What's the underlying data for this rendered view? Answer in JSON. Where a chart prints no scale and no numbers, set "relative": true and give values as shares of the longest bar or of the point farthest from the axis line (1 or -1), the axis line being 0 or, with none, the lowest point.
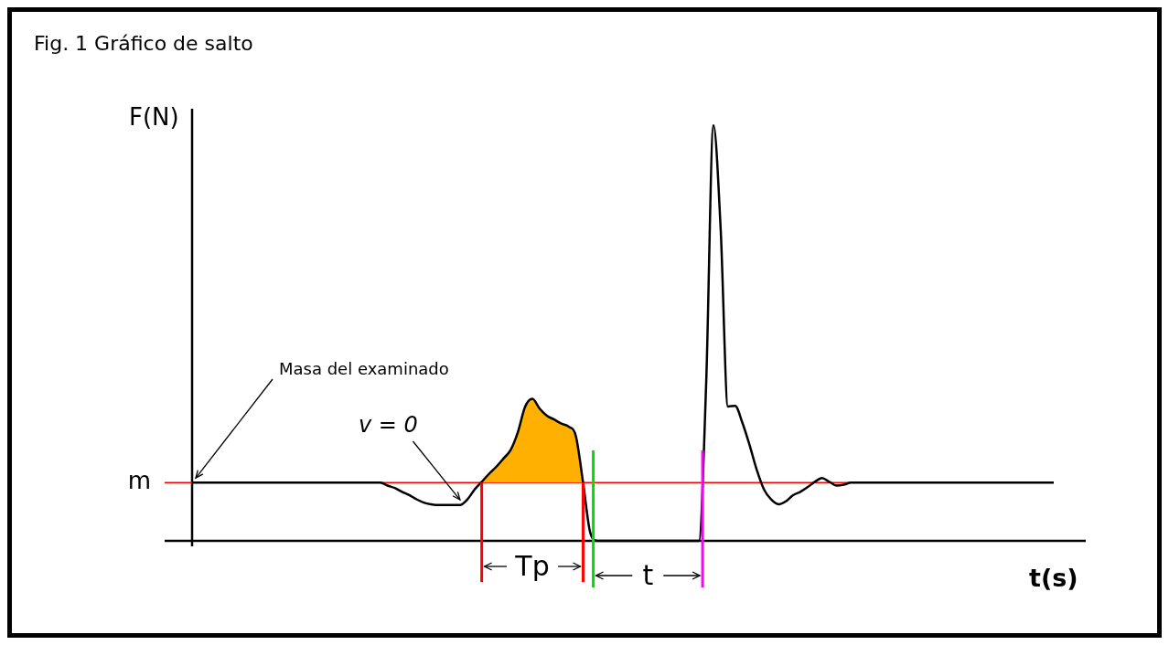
{
  "chart_data": {
    "type": "line",
    "title": "Fig. 1 Gráfico de salto",
    "xlabel": "t(s)",
    "ylabel": "F(N)",
    "relative": true,
    "categories": [
      null,
      null,
      null,
      null,
      null,
      null,
      null,
      null,
      null,
      null,
      null,
      null,
      null,
      null,
      null,
      null,
      null,
      null,
      null,
      null,
      null,
      null,
      null,
      null,
      null,
      null,
      null,
      null,
      null,
      null,
      null,
      null,
      null,
      null,
      null,
      null,
      null,
      null,
      null,
      null,
      null,
      null,
      null,
      null,
      null,
      null,
      null,
      null,
      null,
      null,
      null,
      null,
      null,
      null,
      null,
      null,
      null,
      null,
      null,
      null,
      null,
      null,
      null,
      null,
      null,
      null,
      null,
      null,
      null,
      null,
      null,
      null,
      null,
      null,
      null,
      null,
      null,
      null,
      null,
      null,
      null,
      null,
      null,
      null,
      null,
      null,
      null,
      null,
      null,
      null,
      null,
      null,
      null,
      null,
      null,
      null,
      null,
      null,
      null,
      null,
      null,
      null,
      null,
      null,
      null,
      null,
      null,
      null,
      null,
      null,
      null,
      null,
      null,
      null,
      null,
      null,
      null,
      null,
      null,
      null
    ],
    "series": [
      {
        "type": "line",
        "color": "#000000",
        "values": [
          0.14,
          0.14,
          0.14,
          0.14,
          0.14,
          0.14,
          0.14,
          0.14,
          0.14,
          0.14,
          0.14,
          0.14,
          0.14,
          0.14,
          0.14,
          0.14,
          0.14,
          0.14,
          0.14,
          0.14,
          0.14,
          0.14,
          0.14,
          0.14,
          0.14,
          0.14,
          0.14,
          0.133,
          0.127,
          0.118,
          0.11,
          0.1,
          0.092,
          0.088,
          0.086,
          0.086,
          0.086,
          0.086,
          0.099,
          0.123,
          0.142,
          0.161,
          0.178,
          0.198,
          0.219,
          0.262,
          0.323,
          0.342,
          0.318,
          0.301,
          0.292,
          0.282,
          0.275,
          0.252,
          0.14,
          0.019,
          0,
          0,
          0,
          0,
          0,
          0,
          0,
          0,
          0,
          0,
          0,
          0,
          0,
          0,
          0,
          0.38,
          1,
          0.75,
          0.323,
          0.325,
          0.284,
          0.23,
          0.17,
          0.123,
          0.099,
          0.088,
          0.095,
          0.11,
          0.118,
          0.129,
          0.142,
          0.151,
          0.142,
          0.133,
          0.135,
          0.14,
          0.14,
          0.14,
          0.14,
          0.14,
          0.14,
          0.14,
          0.14,
          0.14,
          0.14,
          0.14,
          0.14,
          0.14,
          0.14,
          0.14,
          0.14,
          0.14,
          0.14,
          0.14,
          0.14,
          0.14,
          0.14,
          0.14,
          0.14,
          0.14,
          0.14,
          0.14,
          0.14,
          0.14
        ]
      },
      {
        "type": "area",
        "color": "#ffb000",
        "values": [
          null,
          null,
          null,
          null,
          null,
          null,
          null,
          null,
          null,
          null,
          null,
          null,
          null,
          null,
          null,
          null,
          null,
          null,
          null,
          null,
          null,
          null,
          null,
          null,
          null,
          null,
          null,
          null,
          null,
          null,
          null,
          null,
          null,
          null,
          null,
          null,
          null,
          null,
          null,
          null,
          0.142,
          0.161,
          0.178,
          0.198,
          0.219,
          0.262,
          0.323,
          0.342,
          0.318,
          0.301,
          0.292,
          0.282,
          0.275,
          0.252,
          0.14,
          null,
          null,
          null,
          null,
          null,
          null,
          null,
          null,
          null,
          null,
          null,
          null,
          null,
          null,
          null,
          null,
          null,
          null,
          null,
          null,
          null,
          null,
          null,
          null,
          null,
          null,
          null,
          null,
          null,
          null,
          null,
          null,
          null,
          null,
          null,
          null,
          null,
          null,
          null,
          null,
          null,
          null,
          null,
          null,
          null,
          null,
          null,
          null,
          null,
          null,
          null,
          null,
          null,
          null,
          null,
          null,
          null,
          null,
          null,
          null,
          null,
          null,
          null,
          null,
          null
        ]
      }
    ],
    "ref_lines": [
      {
        "axis": "y",
        "value": 0.14,
        "label": "m",
        "color": "#ff0000"
      }
    ],
    "annotations": [
      "Masa del examinado",
      "v = 0",
      "Tp",
      "t"
    ],
    "grid": false,
    "legend": false
  }
}
